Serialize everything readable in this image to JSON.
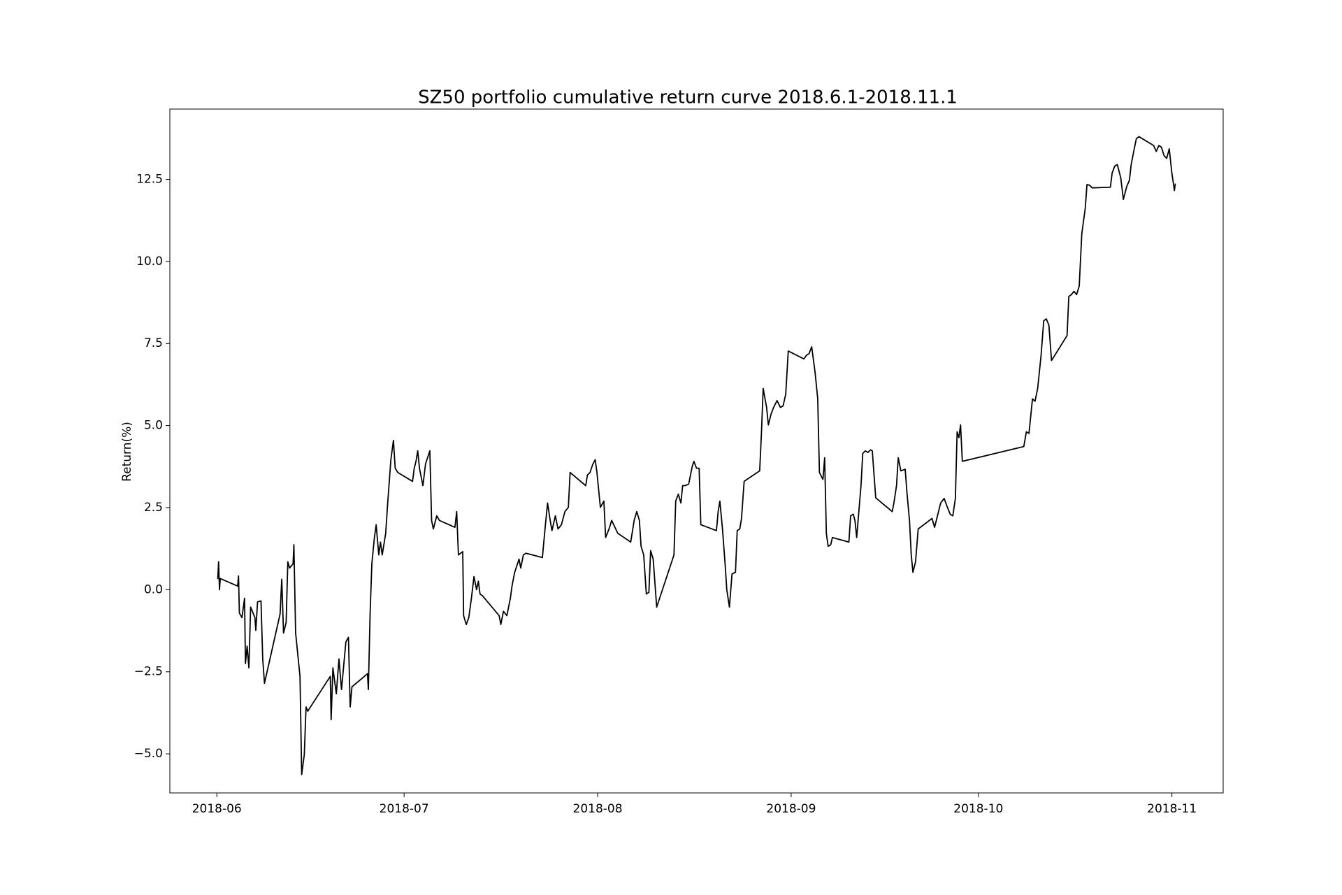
{
  "chart_data": {
    "type": "line",
    "title": "SZ50 portfolio cumulative return curve 2018.6.1-2018.11.1",
    "y_label": "Return(%)",
    "xlim": [
      -7.53,
      161.21
    ],
    "ylim": [
      -6.19,
      14.64
    ],
    "xticks": [
      {
        "value": 0,
        "label": "2018-06"
      },
      {
        "value": 30,
        "label": "2018-07"
      },
      {
        "value": 61,
        "label": "2018-08"
      },
      {
        "value": 92,
        "label": "2018-09"
      },
      {
        "value": 122,
        "label": "2018-10"
      },
      {
        "value": 153,
        "label": "2018-11"
      }
    ],
    "yticks": [
      {
        "value": -5,
        "label": "−5.0"
      },
      {
        "value": -2.5,
        "label": "−2.5"
      },
      {
        "value": 0,
        "label": "0.0"
      },
      {
        "value": 2.5,
        "label": "2.5"
      },
      {
        "value": 5,
        "label": "5.0"
      },
      {
        "value": 7.5,
        "label": "7.5"
      },
      {
        "value": 10,
        "label": "10.0"
      },
      12.5
    ],
    "grid": false,
    "color": "#000000",
    "x": [
      0.14,
      0.28,
      0.42,
      0.55,
      3.33,
      3.47,
      3.61,
      4.02,
      4.44,
      4.58,
      4.85,
      5.13,
      5.41,
      6.1,
      6.24,
      6.52,
      7.07,
      7.35,
      7.63,
      10.13,
      10.4,
      10.68,
      11.1,
      11.37,
      11.65,
      12.21,
      12.34,
      12.62,
      13.32,
      13.59,
      14.01,
      14.29,
      14.56,
      18.17,
      18.31,
      18.59,
      19.14,
      19.56,
      19.97,
      20.67,
      21.08,
      21.36,
      21.64,
      24.13,
      24.27,
      24.55,
      24.83,
      25.24,
      25.52,
      25.94,
      26.21,
      26.49,
      27.05,
      27.32,
      27.88,
      28.29,
      28.57,
      28.99,
      31.35,
      31.62,
      31.9,
      32.18,
      32.46,
      33.01,
      33.43,
      34.12,
      34.4,
      34.68,
      35.23,
      35.65,
      38.14,
      38.42,
      38.7,
      39.39,
      39.53,
      39.95,
      40.36,
      40.78,
      41.19,
      41.61,
      41.89,
      42.16,
      42.58,
      45.22,
      45.49,
      45.91,
      46.46,
      47.02,
      47.3,
      47.71,
      48.41,
      48.68,
      49.1,
      49.52,
      52.15,
      52.57,
      52.98,
      53.4,
      53.68,
      54.23,
      54.65,
      55.2,
      55.76,
      56.31,
      56.59,
      59.09,
      59.36,
      59.78,
      60.2,
      60.61,
      60.89,
      61.44,
      62.0,
      62.28,
      62.83,
      63.25,
      64.22,
      66.3,
      66.85,
      67.27,
      67.69,
      67.96,
      68.38,
      68.8,
      69.21,
      69.49,
      69.9,
      70.46,
      73.23,
      73.51,
      73.93,
      74.34,
      74.62,
      75.04,
      75.59,
      76.15,
      76.42,
      76.84,
      77.26,
      77.53,
      80.03,
      80.31,
      80.58,
      81.0,
      81.42,
      81.69,
      82.11,
      82.53,
      83.08,
      83.36,
      83.77,
      84.05,
      84.47,
      86.96,
      87.24,
      87.52,
      88.07,
      88.35,
      88.77,
      89.18,
      89.74,
      90.29,
      90.71,
      91.13,
      91.54,
      94.04,
      94.45,
      94.87,
      95.29,
      95.84,
      96.26,
      96.53,
      97.09,
      97.37,
      97.64,
      97.92,
      98.34,
      98.61,
      101.25,
      101.53,
      101.95,
      102.22,
      102.5,
      103.19,
      103.47,
      103.89,
      104.3,
      104.72,
      105.0,
      105.55,
      108.19,
      108.46,
      108.88,
      109.16,
      109.57,
      110.27,
      110.55,
      110.96,
      111.24,
      111.51,
      111.93,
      112.35,
      114.57,
      114.98,
      115.4,
      115.95,
      116.51,
      116.93,
      117.48,
      117.9,
      118.31,
      118.59,
      118.87,
      119.14,
      119.42,
      129.27,
      129.68,
      130.1,
      130.66,
      131.07,
      131.49,
      132.04,
      132.46,
      132.87,
      133.29,
      133.71,
      136.2,
      136.48,
      136.9,
      137.31,
      137.73,
      138.15,
      138.56,
      139.12,
      139.39,
      139.81,
      140.23,
      143.14,
      143.42,
      143.83,
      144.25,
      144.8,
      145.22,
      145.77,
      146.19,
      146.47,
      146.88,
      147.3,
      147.72,
      150.07,
      150.49,
      150.91,
      151.32,
      151.74,
      152.16,
      152.57,
      152.99,
      153.4,
      153.54
    ],
    "values": [
      0.32,
      0.85,
      0,
      0.34,
      0.11,
      0.42,
      -0.71,
      -0.85,
      -0.26,
      -2.25,
      -1.72,
      -2.38,
      -0.53,
      -0.85,
      -1.24,
      -0.37,
      -0.34,
      -2.11,
      -2.85,
      -0.74,
      0.32,
      -1.32,
      -1.0,
      0.85,
      0.66,
      0.79,
      1.37,
      -1.32,
      -2.64,
      -5.63,
      -5.02,
      -3.57,
      -3.7,
      -2.64,
      -3.96,
      -2.38,
      -3.17,
      -2.11,
      -3.04,
      -1.59,
      -1.45,
      -3.57,
      -2.96,
      -2.56,
      -3.04,
      -0.74,
      0.79,
      1.59,
      1.98,
      1.06,
      1.45,
      1.06,
      1.72,
      2.51,
      3.96,
      4.55,
      3.7,
      3.57,
      3.3,
      3.7,
      3.91,
      4.23,
      3.7,
      3.17,
      3.83,
      4.23,
      2.11,
      1.85,
      2.25,
      2.11,
      1.9,
      2.38,
      1.06,
      1.16,
      -0.79,
      -1.06,
      -0.85,
      -0.26,
      0.4,
      0,
      0.26,
      -0.13,
      -0.19,
      -0.79,
      -1.06,
      -0.66,
      -0.79,
      -0.26,
      0.13,
      0.53,
      0.93,
      0.66,
      1.06,
      1.11,
      0.98,
      1.85,
      2.64,
      2.11,
      1.8,
      2.25,
      1.85,
      1.98,
      2.38,
      2.51,
      3.57,
      3.17,
      3.49,
      3.57,
      3.81,
      3.96,
      3.57,
      2.51,
      2.7,
      1.59,
      1.85,
      2.11,
      1.72,
      1.45,
      2.11,
      2.38,
      2.11,
      1.32,
      1.06,
      -0.13,
      -0.08,
      1.19,
      0.93,
      -0.53,
      1.06,
      2.7,
      2.91,
      2.64,
      3.17,
      3.17,
      3.22,
      3.75,
      3.91,
      3.7,
      3.7,
      1.98,
      1.8,
      2.38,
      2.7,
      1.85,
      0.79,
      0,
      -0.53,
      0.48,
      0.53,
      1.8,
      1.85,
      2.17,
      3.3,
      3.62,
      4.76,
      6.13,
      5.55,
      5.02,
      5.34,
      5.55,
      5.76,
      5.55,
      5.6,
      5.95,
      7.27,
      7.03,
      7.14,
      7.19,
      7.4,
      6.61,
      5.81,
      3.57,
      3.36,
      4.02,
      1.72,
      1.32,
      1.37,
      1.59,
      1.45,
      2.25,
      2.3,
      2.11,
      1.59,
      3.17,
      4.15,
      4.23,
      4.18,
      4.26,
      4.23,
      2.8,
      2.38,
      2.64,
      3.17,
      4.02,
      3.62,
      3.67,
      2.96,
      2.11,
      1.06,
      0.53,
      0.85,
      1.85,
      2.17,
      1.9,
      2.22,
      2.64,
      2.78,
      2.56,
      2.3,
      2.25,
      2.78,
      4.81,
      4.63,
      5.02,
      3.91,
      4.36,
      4.81,
      4.76,
      5.81,
      5.74,
      6.13,
      7.14,
      8.19,
      8.25,
      8.06,
      6.98,
      7.74,
      8.93,
      8.99,
      9.09,
      8.99,
      9.25,
      10.84,
      11.63,
      12.34,
      12.32,
      12.24,
      12.26,
      12.69,
      12.9,
      12.95,
      12.55,
      11.89,
      12.29,
      12.47,
      12.95,
      13.35,
      13.74,
      13.8,
      13.53,
      13.35,
      13.53,
      13.48,
      13.22,
      13.14,
      13.43,
      12.69,
      12.16,
      12.37
    ]
  }
}
